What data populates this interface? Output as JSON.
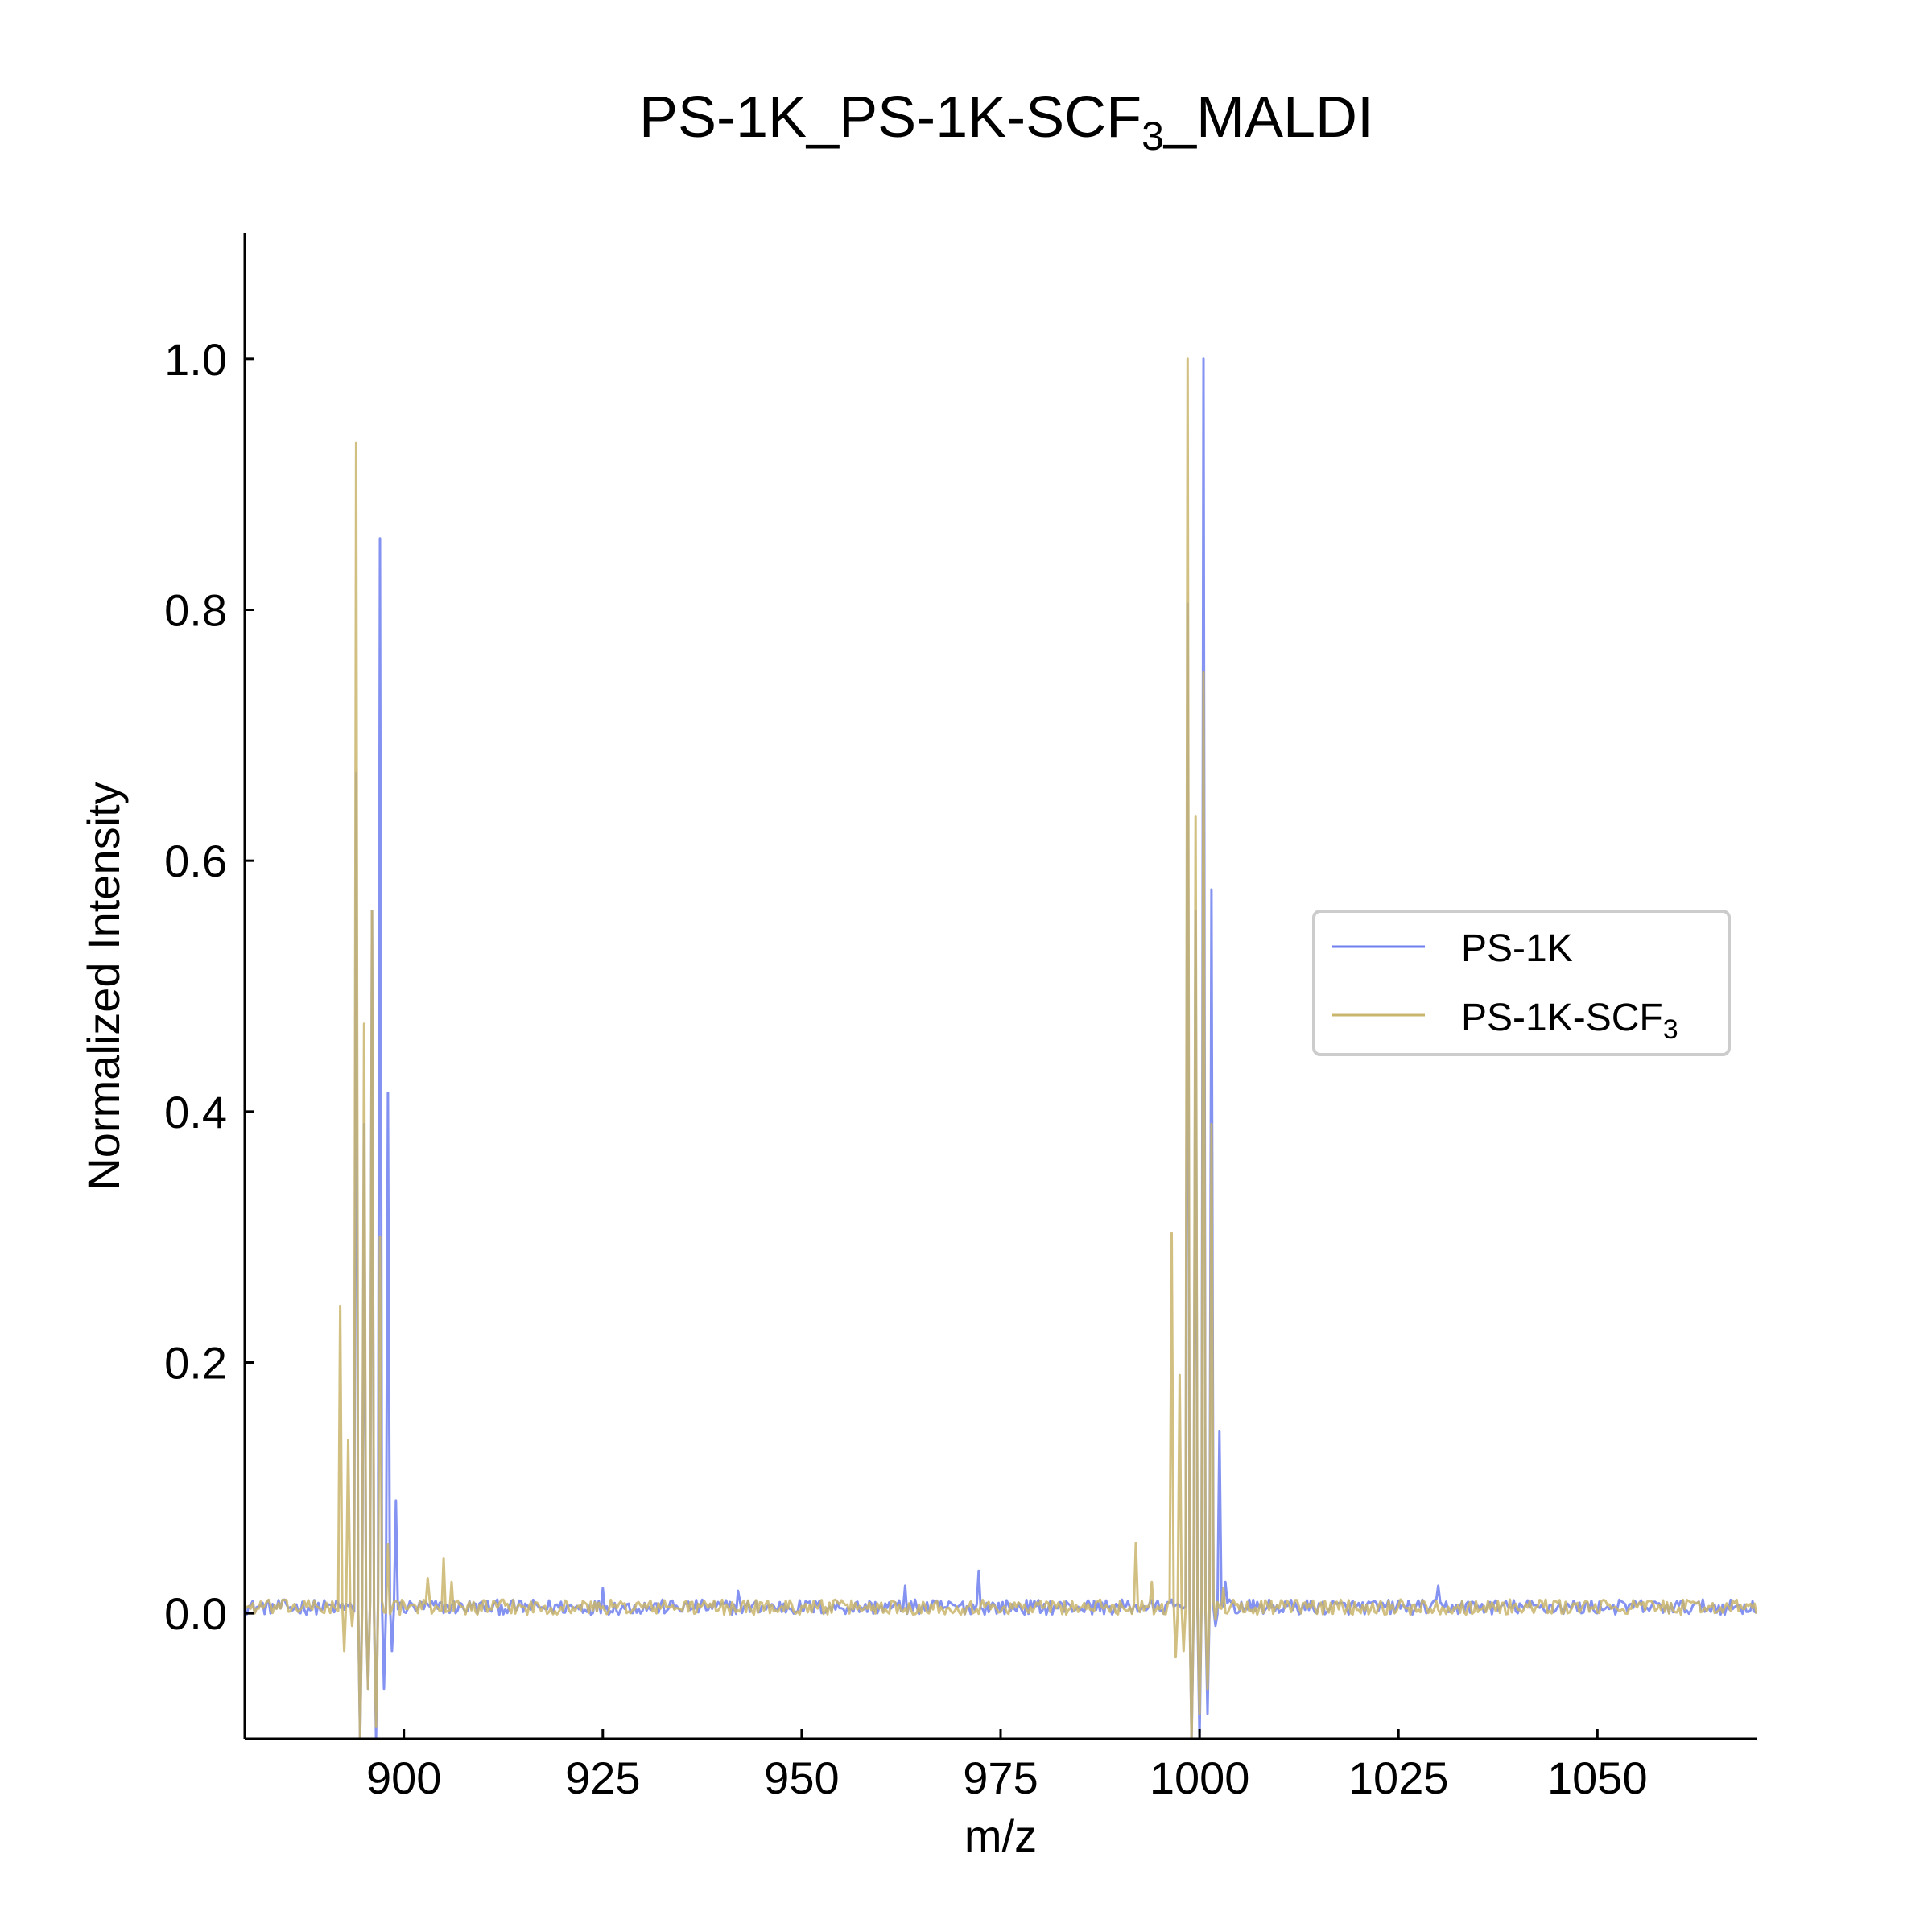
{
  "chart_data": {
    "type": "line",
    "title": "PS-1K_PS-1K-SCF",
    "title_subscript": "3",
    "title_suffix": "_MALDI",
    "xlabel": "m/z",
    "ylabel": "Normalized Intensity",
    "xlim": [
      880,
      1070
    ],
    "ylim": [
      -0.1,
      1.1
    ],
    "x_ticks": [
      900,
      925,
      950,
      975,
      1000,
      1025,
      1050
    ],
    "y_ticks": [
      0.0,
      0.2,
      0.4,
      0.6,
      0.8,
      1.0
    ],
    "y_tick_labels": [
      "0.0",
      "0.2",
      "0.4",
      "0.6",
      "0.8",
      "1.0"
    ],
    "grid": false,
    "legend_position": "center-right",
    "baseline": 0.005,
    "noise_amplitude": 0.006,
    "series": [
      {
        "name": "PS-1K",
        "name_subscript": "",
        "color": "#6f7ff0",
        "opacity": 0.85,
        "peaks": [
          [
            894.0,
            0.67
          ],
          [
            894.5,
            -0.1
          ],
          [
            895.0,
            0.39
          ],
          [
            895.5,
            -0.06
          ],
          [
            896.0,
            0.56
          ],
          [
            896.5,
            -0.1
          ],
          [
            896.9,
            0.857
          ],
          [
            897.4,
            -0.06
          ],
          [
            897.9,
            0.415
          ],
          [
            898.4,
            -0.03
          ],
          [
            898.9,
            0.09
          ],
          [
            925.0,
            0.02
          ],
          [
            942.0,
            0.018
          ],
          [
            963.0,
            0.022
          ],
          [
            972.3,
            0.034
          ],
          [
            998.5,
            0.805
          ],
          [
            999.0,
            -0.1
          ],
          [
            999.5,
            0.56
          ],
          [
            1000.0,
            -0.1
          ],
          [
            1000.5,
            1.0
          ],
          [
            1001.0,
            -0.08
          ],
          [
            1001.5,
            0.577
          ],
          [
            1002.0,
            -0.01
          ],
          [
            1002.5,
            0.145
          ],
          [
            1003.2,
            0.025
          ],
          [
            1030.0,
            0.022
          ]
        ]
      },
      {
        "name": "PS-1K-SCF",
        "name_subscript": "3",
        "color": "#c9b56b",
        "opacity": 0.85,
        "peaks": [
          [
            891.9,
            0.245
          ],
          [
            892.4,
            -0.03
          ],
          [
            892.9,
            0.138
          ],
          [
            893.4,
            -0.01
          ],
          [
            894.0,
            0.933
          ],
          [
            894.5,
            -0.1
          ],
          [
            895.0,
            0.47
          ],
          [
            895.5,
            -0.06
          ],
          [
            896.0,
            0.56
          ],
          [
            896.5,
            -0.09
          ],
          [
            897.0,
            0.3
          ],
          [
            898.0,
            0.055
          ],
          [
            903.0,
            0.028
          ],
          [
            905.0,
            0.044
          ],
          [
            906.0,
            0.025
          ],
          [
            992.0,
            0.056
          ],
          [
            994.0,
            0.025
          ],
          [
            996.5,
            0.303
          ],
          [
            997.0,
            -0.035
          ],
          [
            997.5,
            0.19
          ],
          [
            998.0,
            -0.03
          ],
          [
            998.5,
            1.0
          ],
          [
            999.0,
            -0.1
          ],
          [
            999.5,
            0.635
          ],
          [
            1000.0,
            -0.08
          ],
          [
            1000.5,
            0.75
          ],
          [
            1001.0,
            -0.06
          ],
          [
            1001.5,
            0.39
          ],
          [
            1002.0,
            -0.005
          ],
          [
            1003.0,
            0.02
          ]
        ]
      }
    ]
  }
}
